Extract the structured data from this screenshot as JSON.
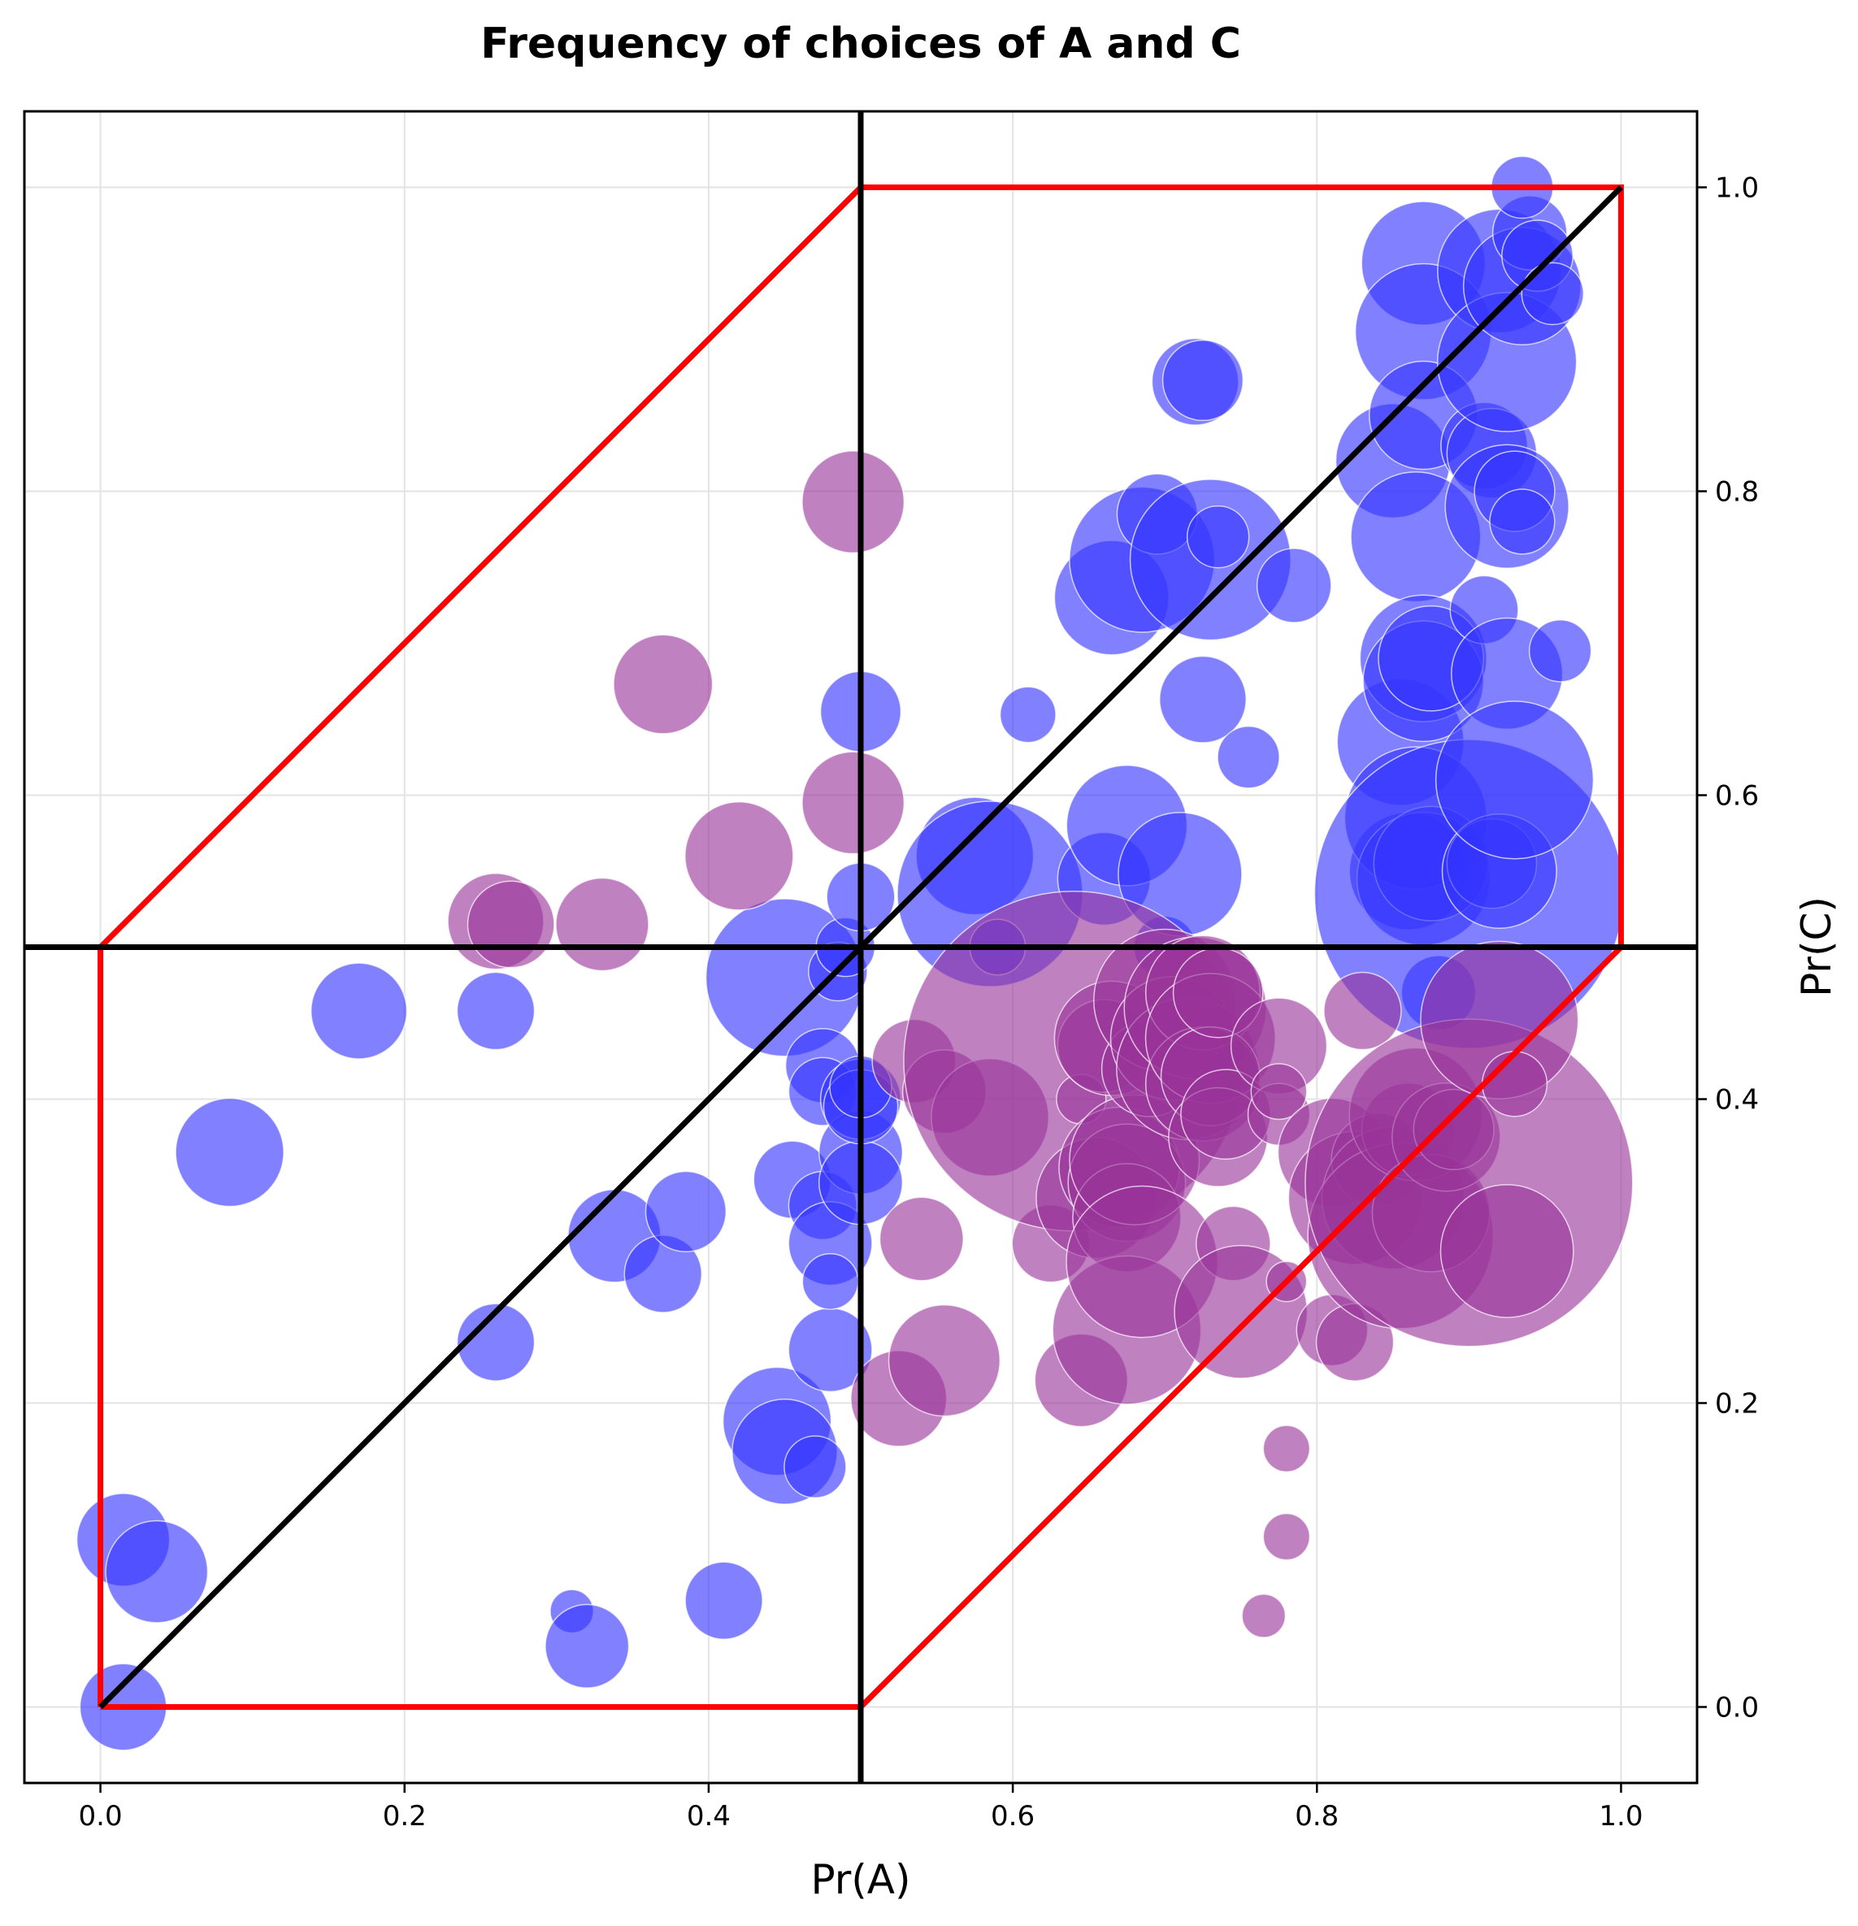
{
  "chart_data": {
    "type": "scatter",
    "title": "Frequency of choices of A and C",
    "xlabel": "Pr(A)",
    "ylabel": "Pr(C)",
    "xlim": [
      -0.05,
      1.05
    ],
    "ylim": [
      -0.05,
      1.05
    ],
    "xticks": [
      0.0,
      0.2,
      0.4,
      0.6,
      0.8,
      1.0
    ],
    "yticks": [
      0.0,
      0.2,
      0.4,
      0.6,
      0.8,
      1.0
    ],
    "xtick_labels": [
      "0.0",
      "0.2",
      "0.4",
      "0.6",
      "0.8",
      "1.0"
    ],
    "ytick_labels": [
      "0.0",
      "0.2",
      "0.4",
      "0.6",
      "0.8",
      "1.0"
    ],
    "y_axis_position": "right",
    "grid": true,
    "reference_lines": {
      "vertical_x": 0.5,
      "horizontal_y": 0.5,
      "diagonal": [
        [
          0,
          0
        ],
        [
          1,
          1
        ]
      ],
      "color": "#000000"
    },
    "region_polygon": {
      "color": "#ff0000",
      "points": [
        [
          0,
          0
        ],
        [
          0.5,
          0
        ],
        [
          1,
          0.5
        ],
        [
          1,
          1
        ],
        [
          0.5,
          1
        ],
        [
          0,
          0.5
        ],
        [
          0,
          0
        ]
      ]
    },
    "series": [
      {
        "name": "blue",
        "color": "#3333ff",
        "size_unit": "relative bubble radius",
        "points": [
          [
            0.015,
            0.0,
            1.4
          ],
          [
            0.015,
            0.11,
            1.5
          ],
          [
            0.037,
            0.089,
            1.65
          ],
          [
            0.085,
            0.365,
            1.75
          ],
          [
            0.17,
            0.458,
            1.55
          ],
          [
            0.26,
            0.458,
            1.25
          ],
          [
            0.26,
            0.24,
            1.25
          ],
          [
            0.31,
            0.063,
            0.7
          ],
          [
            0.32,
            0.04,
            1.35
          ],
          [
            0.338,
            0.31,
            1.5
          ],
          [
            0.37,
            0.285,
            1.25
          ],
          [
            0.385,
            0.326,
            1.3
          ],
          [
            0.41,
            0.07,
            1.25
          ],
          [
            0.445,
            0.188,
            1.75
          ],
          [
            0.45,
            0.168,
            1.7
          ],
          [
            0.45,
            0.48,
            2.55
          ],
          [
            0.455,
            0.347,
            1.25
          ],
          [
            0.47,
            0.158,
            1.0
          ],
          [
            0.475,
            0.422,
            1.2
          ],
          [
            0.475,
            0.405,
            1.1
          ],
          [
            0.475,
            0.33,
            1.1
          ],
          [
            0.48,
            0.305,
            1.35
          ],
          [
            0.48,
            0.235,
            1.35
          ],
          [
            0.48,
            0.28,
            0.9
          ],
          [
            0.485,
            0.484,
            0.95
          ],
          [
            0.49,
            0.5,
            0.95
          ],
          [
            0.5,
            0.655,
            1.3
          ],
          [
            0.5,
            0.533,
            1.1
          ],
          [
            0.5,
            0.365,
            1.35
          ],
          [
            0.5,
            0.345,
            1.35
          ],
          [
            0.5,
            0.4,
            1.3
          ],
          [
            0.5,
            0.395,
            1.2
          ],
          [
            0.5,
            0.408,
            1.0
          ],
          [
            0.575,
            0.56,
            1.9
          ],
          [
            0.585,
            0.535,
            3.0
          ],
          [
            0.59,
            0.5,
            0.9
          ],
          [
            0.61,
            0.653,
            0.9
          ],
          [
            0.66,
            0.545,
            1.5
          ],
          [
            0.665,
            0.73,
            1.85
          ],
          [
            0.675,
            0.58,
            1.95
          ],
          [
            0.685,
            0.755,
            2.35
          ],
          [
            0.695,
            0.785,
            1.3
          ],
          [
            0.7,
            0.5,
            1.0
          ],
          [
            0.71,
            0.548,
            2.0
          ],
          [
            0.72,
            0.872,
            1.4
          ],
          [
            0.725,
            0.873,
            1.3
          ],
          [
            0.725,
            0.663,
            1.4
          ],
          [
            0.73,
            0.755,
            2.6
          ],
          [
            0.735,
            0.77,
            1.0
          ],
          [
            0.755,
            0.625,
            1.0
          ],
          [
            0.785,
            0.738,
            1.2
          ],
          [
            0.85,
            0.82,
            1.85
          ],
          [
            0.855,
            0.635,
            2.05
          ],
          [
            0.86,
            0.55,
            1.9
          ],
          [
            0.865,
            0.77,
            2.1
          ],
          [
            0.865,
            0.585,
            2.3
          ],
          [
            0.87,
            0.95,
            2.0
          ],
          [
            0.87,
            0.905,
            2.2
          ],
          [
            0.87,
            0.85,
            1.75
          ],
          [
            0.87,
            0.69,
            2.05
          ],
          [
            0.87,
            0.675,
            1.95
          ],
          [
            0.87,
            0.545,
            2.15
          ],
          [
            0.875,
            0.69,
            1.7
          ],
          [
            0.875,
            0.555,
            1.85
          ],
          [
            0.88,
            0.47,
            1.2
          ],
          [
            0.9,
            0.535,
            5.0
          ],
          [
            0.91,
            0.83,
            1.4
          ],
          [
            0.91,
            0.722,
            1.1
          ],
          [
            0.915,
            0.555,
            1.45
          ],
          [
            0.915,
            0.825,
            1.45
          ],
          [
            0.92,
            0.55,
            1.85
          ],
          [
            0.92,
            0.945,
            2.0
          ],
          [
            0.925,
            0.885,
            2.25
          ],
          [
            0.925,
            0.79,
            2.0
          ],
          [
            0.925,
            0.68,
            1.8
          ],
          [
            0.93,
            0.61,
            2.55
          ],
          [
            0.93,
            0.8,
            1.3
          ],
          [
            0.935,
            0.935,
            1.9
          ],
          [
            0.935,
            0.78,
            1.05
          ],
          [
            0.94,
            0.97,
            1.2
          ],
          [
            0.945,
            0.955,
            1.15
          ],
          [
            0.935,
            1.0,
            1.0
          ],
          [
            0.955,
            0.93,
            1.0
          ],
          [
            0.96,
            0.695,
            1.0
          ]
        ]
      },
      {
        "name": "purple",
        "color": "#993399",
        "size_unit": "relative bubble radius",
        "points": [
          [
            0.26,
            0.517,
            1.55
          ],
          [
            0.27,
            0.515,
            1.4
          ],
          [
            0.33,
            0.515,
            1.5
          ],
          [
            0.37,
            0.673,
            1.6
          ],
          [
            0.42,
            0.56,
            1.75
          ],
          [
            0.495,
            0.793,
            1.65
          ],
          [
            0.495,
            0.595,
            1.65
          ],
          [
            0.525,
            0.203,
            1.55
          ],
          [
            0.535,
            0.425,
            1.35
          ],
          [
            0.54,
            0.308,
            1.35
          ],
          [
            0.555,
            0.228,
            1.8
          ],
          [
            0.555,
            0.405,
            1.35
          ],
          [
            0.585,
            0.388,
            1.9
          ],
          [
            0.625,
            0.305,
            1.25
          ],
          [
            0.64,
            0.425,
            5.5
          ],
          [
            0.645,
            0.215,
            1.5
          ],
          [
            0.645,
            0.4,
            0.8
          ],
          [
            0.655,
            0.335,
            1.95
          ],
          [
            0.66,
            0.435,
            1.5
          ],
          [
            0.665,
            0.44,
            1.85
          ],
          [
            0.67,
            0.355,
            1.95
          ],
          [
            0.675,
            0.345,
            1.9
          ],
          [
            0.675,
            0.322,
            1.75
          ],
          [
            0.675,
            0.248,
            2.4
          ],
          [
            0.68,
            0.36,
            2.1
          ],
          [
            0.685,
            0.293,
            2.45
          ],
          [
            0.69,
            0.42,
            1.55
          ],
          [
            0.7,
            0.465,
            2.3
          ],
          [
            0.705,
            0.44,
            2.0
          ],
          [
            0.715,
            0.42,
            2.3
          ],
          [
            0.72,
            0.46,
            2.3
          ],
          [
            0.725,
            0.47,
            1.85
          ],
          [
            0.725,
            0.41,
            1.85
          ],
          [
            0.73,
            0.44,
            2.1
          ],
          [
            0.73,
            0.415,
            1.6
          ],
          [
            0.735,
            0.47,
            1.45
          ],
          [
            0.735,
            0.375,
            1.6
          ],
          [
            0.74,
            0.39,
            1.45
          ],
          [
            0.745,
            0.305,
            1.2
          ],
          [
            0.75,
            0.26,
            2.15
          ],
          [
            0.765,
            0.06,
            0.7
          ],
          [
            0.775,
            0.435,
            1.55
          ],
          [
            0.775,
            0.39,
            1.0
          ],
          [
            0.775,
            0.405,
            0.9
          ],
          [
            0.78,
            0.28,
            0.65
          ],
          [
            0.78,
            0.17,
            0.75
          ],
          [
            0.78,
            0.112,
            0.75
          ],
          [
            0.81,
            0.365,
            1.75
          ],
          [
            0.81,
            0.248,
            1.15
          ],
          [
            0.825,
            0.335,
            2.15
          ],
          [
            0.825,
            0.24,
            1.25
          ],
          [
            0.83,
            0.458,
            1.25
          ],
          [
            0.84,
            0.36,
            1.5
          ],
          [
            0.85,
            0.335,
            2.3
          ],
          [
            0.855,
            0.31,
            3.0
          ],
          [
            0.86,
            0.38,
            1.5
          ],
          [
            0.865,
            0.39,
            2.15
          ],
          [
            0.875,
            0.325,
            1.9
          ],
          [
            0.885,
            0.375,
            1.75
          ],
          [
            0.89,
            0.38,
            1.3
          ],
          [
            0.9,
            0.345,
            5.3
          ],
          [
            0.92,
            0.452,
            2.55
          ],
          [
            0.925,
            0.3,
            2.15
          ],
          [
            0.93,
            0.41,
            1.05
          ]
        ]
      }
    ]
  }
}
